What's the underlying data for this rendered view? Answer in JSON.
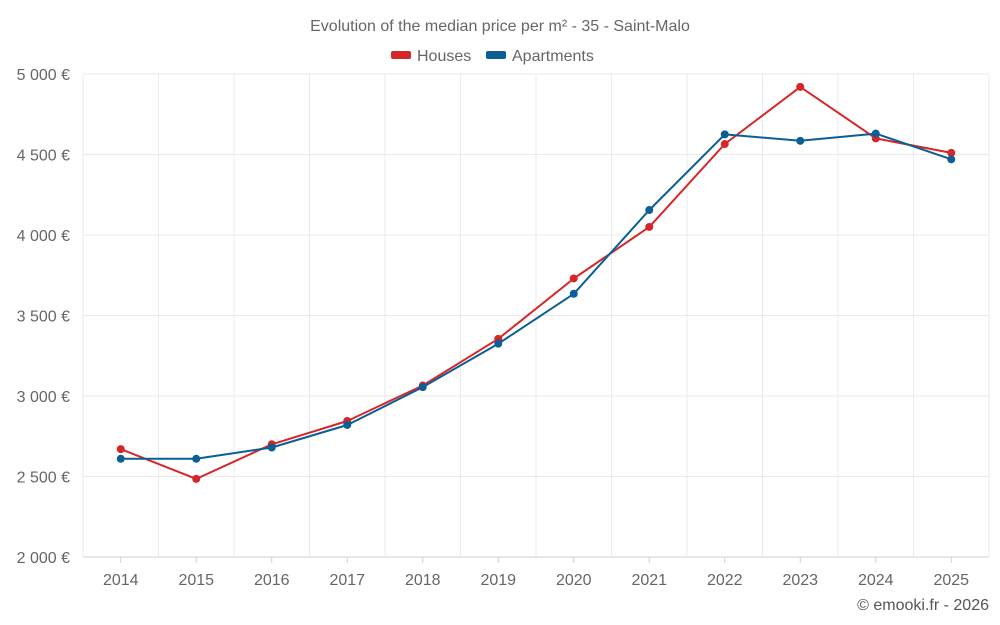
{
  "chart_data": {
    "type": "line",
    "title": "Evolution of the median price per m² - 35 - Saint-Malo",
    "categories": [
      "2014",
      "2015",
      "2016",
      "2017",
      "2018",
      "2019",
      "2020",
      "2021",
      "2022",
      "2023",
      "2024",
      "2025"
    ],
    "series": [
      {
        "name": "Houses",
        "color": "#d62728",
        "values": [
          2670,
          2485,
          2700,
          2845,
          3065,
          3355,
          3730,
          4050,
          4565,
          4920,
          4600,
          4510
        ]
      },
      {
        "name": "Apartments",
        "color": "#0b5f96",
        "values": [
          2610,
          2610,
          2680,
          2820,
          3055,
          3325,
          3635,
          4155,
          4625,
          4585,
          4630,
          4470
        ]
      }
    ],
    "ylim": [
      2000,
      5000
    ],
    "yticks": [
      2000,
      2500,
      3000,
      3500,
      4000,
      4500,
      5000
    ],
    "ytick_labels": [
      "2 000 €",
      "2 500 €",
      "3 000 €",
      "3 500 €",
      "4 000 €",
      "4 500 €",
      "5 000 €"
    ],
    "xlabel": "",
    "ylabel": "",
    "grid": true,
    "legend_position": "top-center"
  },
  "footer": {
    "credit": "© emooki.fr - 2026"
  }
}
